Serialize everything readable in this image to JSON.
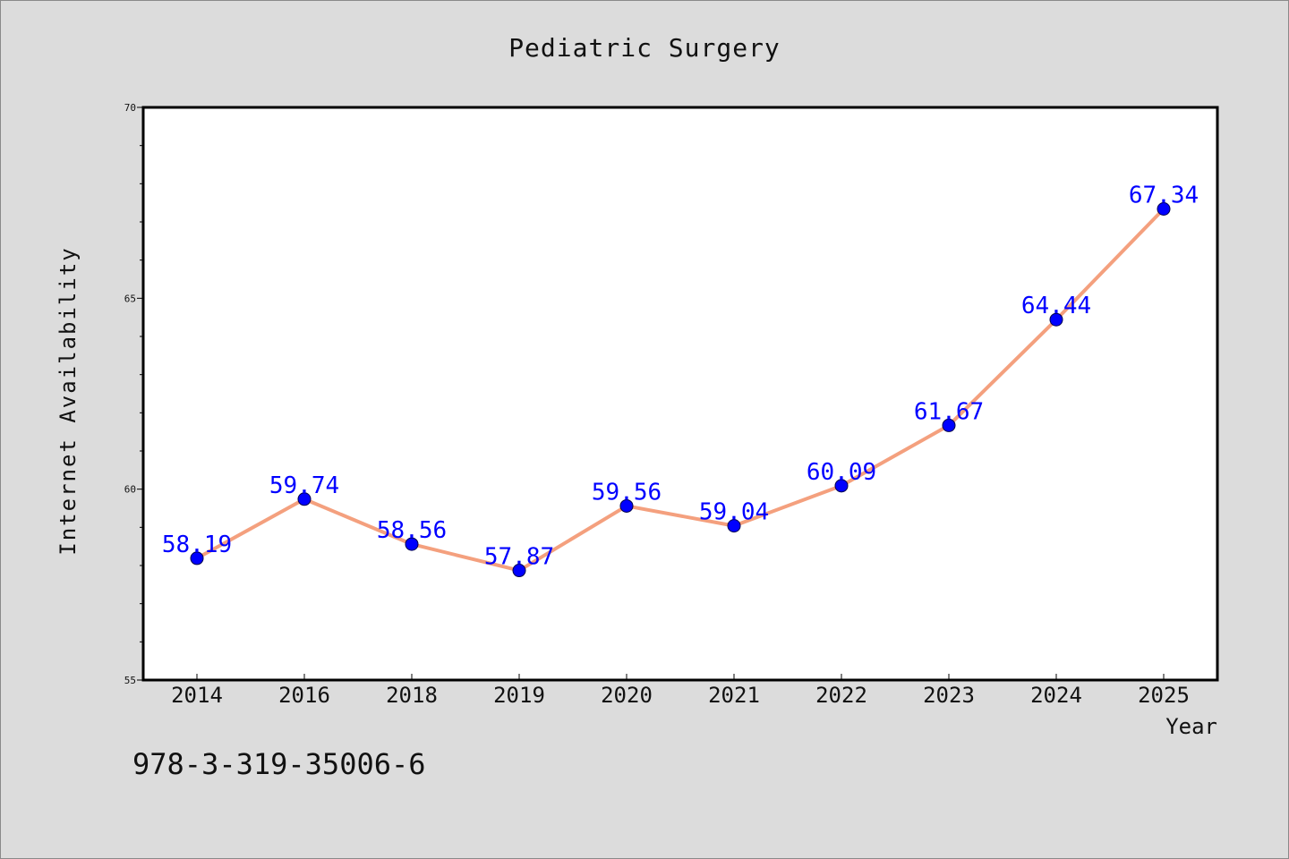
{
  "chart_data": {
    "type": "line",
    "title": "Pediatric Surgery",
    "xlabel": "Year",
    "ylabel": "Internet Availability",
    "categories": [
      "2014",
      "2016",
      "2018",
      "2019",
      "2020",
      "2021",
      "2022",
      "2023",
      "2024",
      "2025"
    ],
    "values": [
      58.19,
      59.74,
      58.56,
      57.87,
      59.56,
      59.04,
      60.09,
      61.67,
      64.44,
      67.34
    ],
    "value_labels": [
      "58.19",
      "59.74",
      "58.56",
      "57.87",
      "59.56",
      "59.04",
      "60.09",
      "61.67",
      "64.44",
      "67.34"
    ],
    "ylim": [
      55,
      70
    ],
    "yticks": [
      55,
      60,
      65,
      70
    ],
    "ytick_labels": [
      "55",
      "60",
      "65",
      "70"
    ],
    "grid": false,
    "line_color": "#f4a07e",
    "marker_color": "#0000ff",
    "label_color": "#0000ff"
  },
  "footer": {
    "isbn": "978-3-319-35006-6"
  }
}
